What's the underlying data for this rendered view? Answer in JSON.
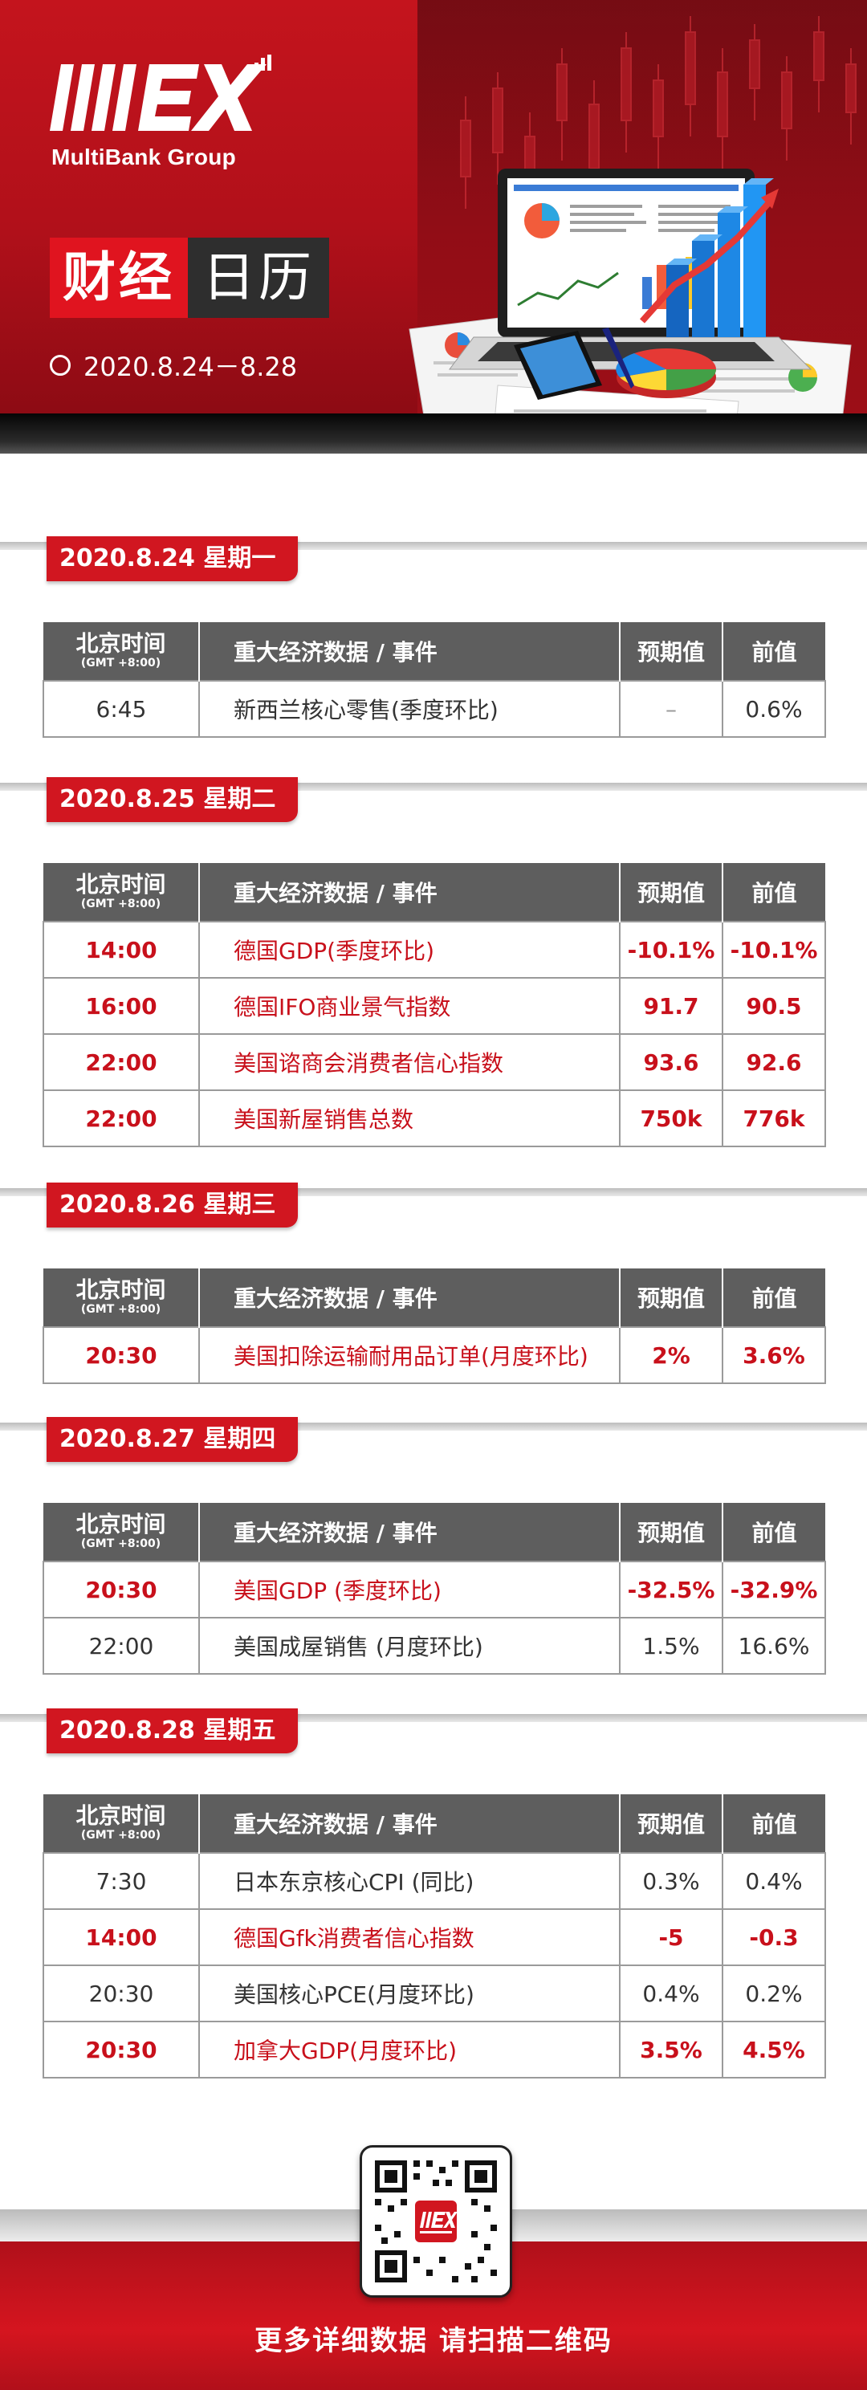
{
  "brand": {
    "logo_text": "MultiBank Group",
    "primary_red": "#d11620",
    "dark_gray": "#5e5e5e"
  },
  "hero": {
    "title_red": "财经",
    "title_dark": "日历",
    "date_range": "2020.8.24－8.28"
  },
  "table_headers": {
    "time": "北京时间",
    "time_sub": "(GMT +8:00)",
    "event": "重大经济数据 / 事件",
    "forecast": "预期值",
    "previous": "前值"
  },
  "days": [
    {
      "date": "2020.8.24 星期一",
      "rows": [
        {
          "time": "6:45",
          "event": "新西兰核心零售(季度环比)",
          "forecast": "–",
          "previous": "0.6%",
          "highlight": false
        }
      ]
    },
    {
      "date": "2020.8.25 星期二",
      "rows": [
        {
          "time": "14:00",
          "event": "德国GDP(季度环比)",
          "forecast": "-10.1%",
          "previous": "-10.1%",
          "highlight": true
        },
        {
          "time": "16:00",
          "event": "德国IFO商业景气指数",
          "forecast": "91.7",
          "previous": "90.5",
          "highlight": true
        },
        {
          "time": "22:00",
          "event": "美国谘商会消费者信心指数",
          "forecast": "93.6",
          "previous": "92.6",
          "highlight": true
        },
        {
          "time": "22:00",
          "event": "美国新屋销售总数",
          "forecast": "750k",
          "previous": "776k",
          "highlight": true
        }
      ]
    },
    {
      "date": "2020.8.26 星期三",
      "rows": [
        {
          "time": "20:30",
          "event": "美国扣除运输耐用品订单(月度环比)",
          "forecast": "2%",
          "previous": "3.6%",
          "highlight": true
        }
      ]
    },
    {
      "date": "2020.8.27 星期四",
      "rows": [
        {
          "time": "20:30",
          "event": "美国GDP (季度环比)",
          "forecast": "-32.5%",
          "previous": "-32.9%",
          "highlight": true
        },
        {
          "time": "22:00",
          "event": "美国成屋销售 (月度环比)",
          "forecast": "1.5%",
          "previous": "16.6%",
          "highlight": false
        }
      ]
    },
    {
      "date": "2020.8.28 星期五",
      "rows": [
        {
          "time": "7:30",
          "event": "日本东京核心CPI (同比)",
          "forecast": "0.3%",
          "previous": "0.4%",
          "highlight": false
        },
        {
          "time": "14:00",
          "event": "德国Gfk消费者信心指数",
          "forecast": "-5",
          "previous": "-0.3",
          "highlight": true
        },
        {
          "time": "20:30",
          "event": "美国核心PCE(月度环比)",
          "forecast": "0.4%",
          "previous": "0.2%",
          "highlight": false
        },
        {
          "time": "20:30",
          "event": "加拿大GDP(月度环比)",
          "forecast": "3.5%",
          "previous": "4.5%",
          "highlight": true
        }
      ]
    }
  ],
  "footer": {
    "cta": "更多详细数据 请扫描二维码"
  }
}
